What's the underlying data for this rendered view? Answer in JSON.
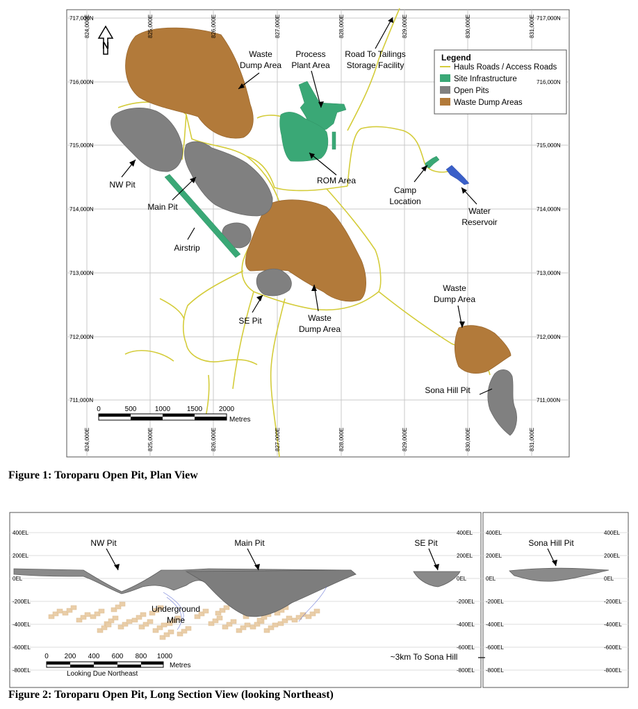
{
  "figure1": {
    "caption": "Figure 1: Toroparu Open Pit, Plan View",
    "eastings": [
      "824,000E",
      "825,000E",
      "826,000E",
      "827,000E",
      "828,000E",
      "829,000E",
      "830,000E",
      "831,000E"
    ],
    "northings": [
      "717,000N",
      "716,000N",
      "715,000N",
      "714,000N",
      "713,000N",
      "712,000N",
      "711,000N"
    ],
    "legend": {
      "title": "Legend",
      "items": [
        {
          "label": "Hauls Roads / Access Roads",
          "color": "#d4cc3a"
        },
        {
          "label": "Site Infrastructure",
          "color": "#3aa876"
        },
        {
          "label": "Open Pits",
          "color": "#808080"
        },
        {
          "label": "Waste Dump Areas",
          "color": "#b27a3a"
        }
      ]
    },
    "labels": {
      "waste_dump_nw_1": "Waste",
      "waste_dump_nw_2": "Dump Area",
      "process_1": "Process",
      "process_2": "Plant Area",
      "tailings_1": "Road To Tailings",
      "tailings_2": "Storage Facility",
      "nw_pit": "NW Pit",
      "main_pit": "Main Pit",
      "airstrip": "Airstrip",
      "rom": "ROM Area",
      "camp_1": "Camp",
      "camp_2": "Location",
      "water_1": "Water",
      "water_2": "Reservoir",
      "se_pit": "SE Pit",
      "waste_dump_c_1": "Waste",
      "waste_dump_c_2": "Dump Area",
      "waste_dump_se_1": "Waste",
      "waste_dump_se_2": "Dump Area",
      "sona": "Sona Hill Pit"
    },
    "scale": {
      "ticks": [
        "0",
        "500",
        "1000",
        "1500",
        "2000"
      ],
      "unit": "Metres"
    },
    "north_letter": "N"
  },
  "figure2": {
    "caption": "Figure 2: Toroparu Open Pit, Long Section View (looking Northeast)",
    "elevations": [
      "400EL",
      "200EL",
      "0EL",
      "-200EL",
      "-400EL",
      "-600EL",
      "-800EL"
    ],
    "labels": {
      "nw_pit": "NW Pit",
      "main_pit": "Main Pit",
      "se_pit": "SE Pit",
      "sona": "Sona Hill Pit",
      "ug_1": "Underground",
      "ug_2": "Mine",
      "to_sona": "~3km To Sona Hill"
    },
    "scale": {
      "ticks": [
        "0",
        "200",
        "400",
        "600",
        "800",
        "1000"
      ],
      "unit": "Metres",
      "note": "Looking Due Northeast"
    }
  }
}
